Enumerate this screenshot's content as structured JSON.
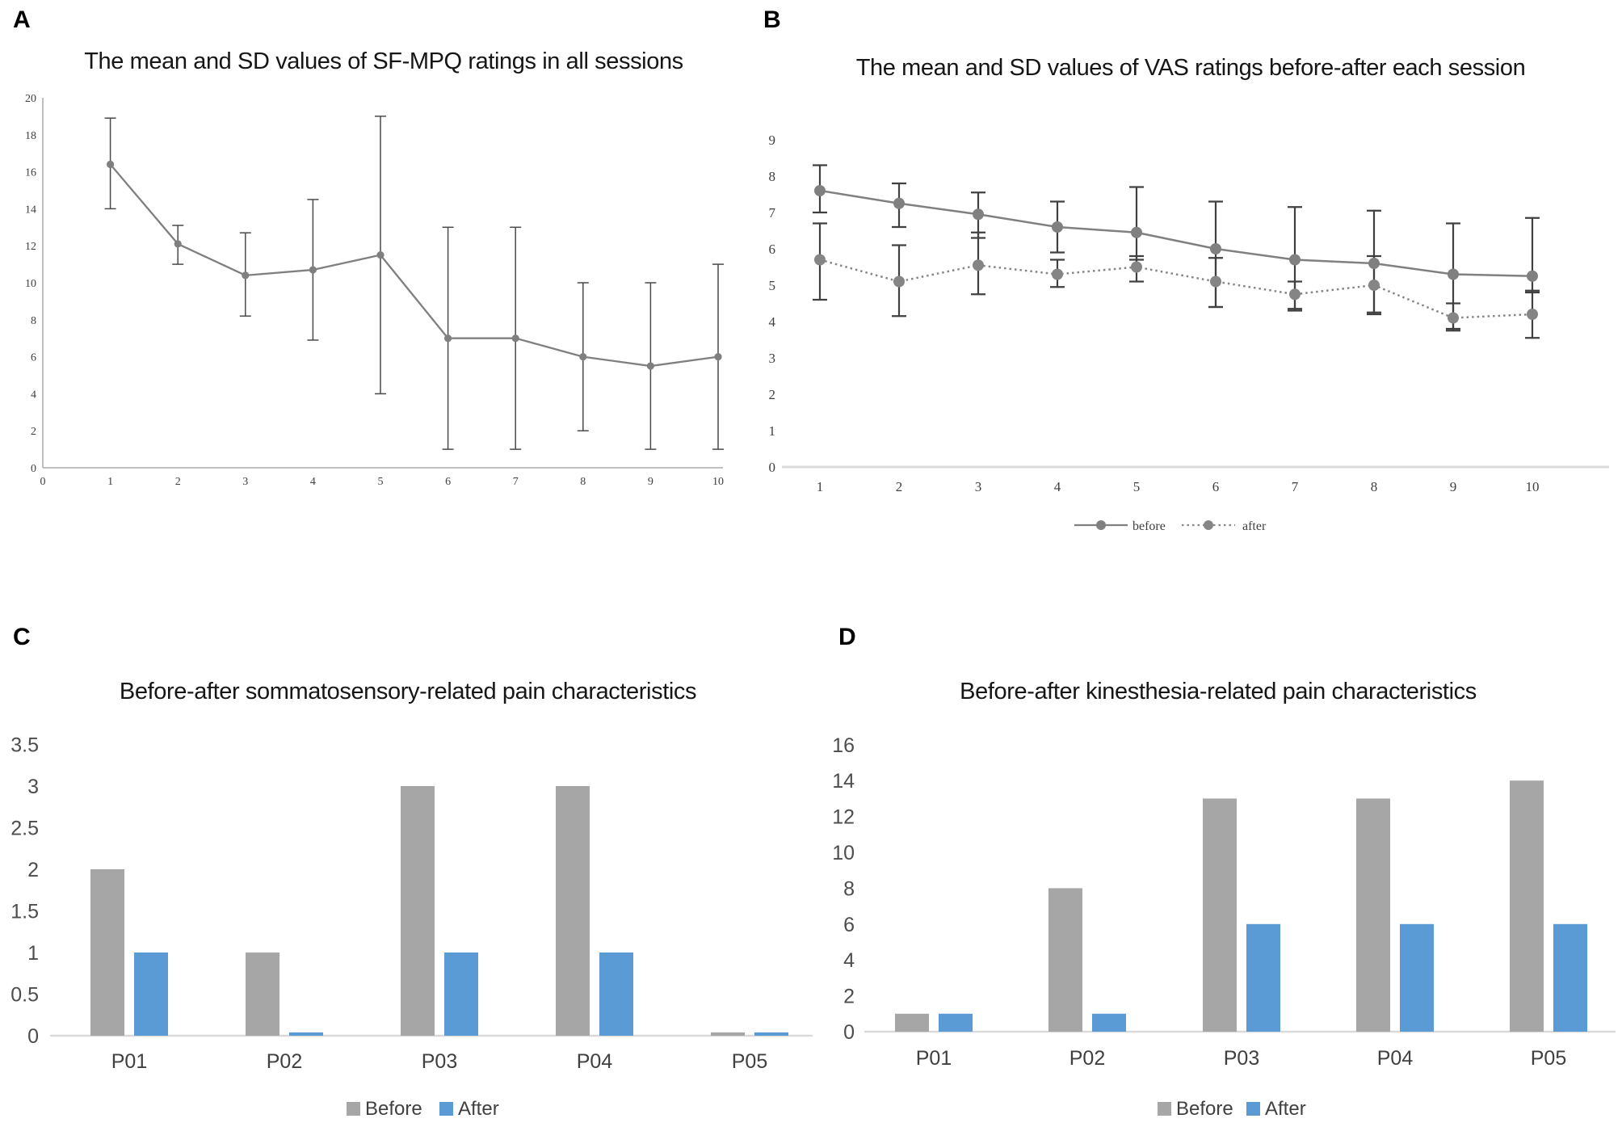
{
  "figure": {
    "background": "#ffffff",
    "colors": {
      "line_gray": "#7f7f7f",
      "error_bar_dark": "#4a4a4a",
      "bar_before_gray": "#a6a6a6",
      "bar_after_blue": "#5b9bd5",
      "axis_light_gray": "#d9d9d9",
      "tick_text_gray": "#3f3f3f"
    }
  },
  "chart_data": [
    {
      "panel_label": "A",
      "type": "line",
      "title": "The mean and SD values of SF-MPQ ratings in all sessions",
      "x": [
        1,
        2,
        3,
        4,
        5,
        6,
        7,
        8,
        9,
        10
      ],
      "x_axis_ticks": [
        0,
        1,
        2,
        3,
        4,
        5,
        6,
        7,
        8,
        9,
        10
      ],
      "y_ticks": [
        0,
        2,
        4,
        6,
        8,
        10,
        12,
        14,
        16,
        18,
        20
      ],
      "ylim": [
        0,
        20
      ],
      "grid": false,
      "legend_position": "none",
      "series": [
        {
          "color": "#7f7f7f",
          "line": "solid",
          "values": [
            16.4,
            12.1,
            10.4,
            10.7,
            11.5,
            7.0,
            7.0,
            6.0,
            5.5,
            6.0
          ],
          "err_hi": [
            18.9,
            13.1,
            12.7,
            14.5,
            19.0,
            13.0,
            13.0,
            10.0,
            10.0,
            11.0
          ],
          "err_lo": [
            14.0,
            11.0,
            8.2,
            6.9,
            4.0,
            1.0,
            1.0,
            2.0,
            1.0,
            1.0
          ]
        }
      ]
    },
    {
      "panel_label": "B",
      "type": "line",
      "title": "The mean and SD values of VAS ratings before-after each session",
      "x": [
        1,
        2,
        3,
        4,
        5,
        6,
        7,
        8,
        9,
        10
      ],
      "x_axis_ticks": [
        1,
        2,
        3,
        4,
        5,
        6,
        7,
        8,
        9,
        10
      ],
      "y_ticks": [
        0,
        1,
        2,
        3,
        4,
        5,
        6,
        7,
        8,
        9
      ],
      "ylim": [
        0,
        9
      ],
      "grid": false,
      "legend_position": "bottom",
      "series": [
        {
          "name": "before",
          "color": "#808080",
          "line": "solid",
          "values": [
            7.6,
            7.25,
            6.95,
            6.6,
            6.45,
            6.0,
            5.7,
            5.6,
            5.3,
            5.25
          ],
          "err_hi": [
            8.3,
            7.8,
            7.55,
            7.3,
            7.7,
            7.3,
            7.15,
            7.05,
            6.7,
            6.85
          ],
          "err_lo": [
            7.0,
            6.6,
            6.3,
            5.9,
            5.7,
            4.4,
            4.3,
            4.2,
            3.8,
            4.8
          ]
        },
        {
          "name": "after",
          "color": "#858585",
          "line": "dotted",
          "values": [
            5.7,
            5.1,
            5.55,
            5.3,
            5.5,
            5.1,
            4.75,
            5.0,
            4.1,
            4.2
          ],
          "err_hi": [
            6.7,
            6.1,
            6.45,
            5.7,
            5.8,
            5.75,
            5.1,
            5.8,
            4.5,
            4.85
          ],
          "err_lo": [
            4.6,
            4.15,
            4.75,
            4.95,
            5.1,
            4.4,
            4.35,
            4.25,
            3.75,
            3.55
          ]
        }
      ]
    },
    {
      "panel_label": "C",
      "type": "bar",
      "title": "Before-after sommatosensory-related pain characteristics",
      "categories": [
        "P01",
        "P02",
        "P03",
        "P04",
        "P05"
      ],
      "y_ticks": [
        0,
        0.5,
        1,
        1.5,
        2,
        2.5,
        3,
        3.5
      ],
      "ylim": [
        0,
        3.5
      ],
      "grid": false,
      "legend_position": "bottom",
      "series": [
        {
          "name": "Before",
          "color": "#a6a6a6",
          "values": [
            2,
            1,
            3,
            3,
            0.04
          ]
        },
        {
          "name": "After",
          "color": "#5b9bd5",
          "values": [
            1,
            0.04,
            1,
            1,
            0.04
          ]
        }
      ]
    },
    {
      "panel_label": "D",
      "type": "bar",
      "title": "Before-after kinesthesia-related pain characteristics",
      "categories": [
        "P01",
        "P02",
        "P03",
        "P04",
        "P05"
      ],
      "y_ticks": [
        0,
        2,
        4,
        6,
        8,
        10,
        12,
        14,
        16
      ],
      "ylim": [
        0,
        16
      ],
      "grid": false,
      "legend_position": "bottom",
      "series": [
        {
          "name": "Before",
          "color": "#a6a6a6",
          "values": [
            1,
            8,
            13,
            13,
            14
          ]
        },
        {
          "name": "After",
          "color": "#5b9bd5",
          "values": [
            1,
            1,
            6,
            6,
            6
          ]
        }
      ]
    }
  ]
}
